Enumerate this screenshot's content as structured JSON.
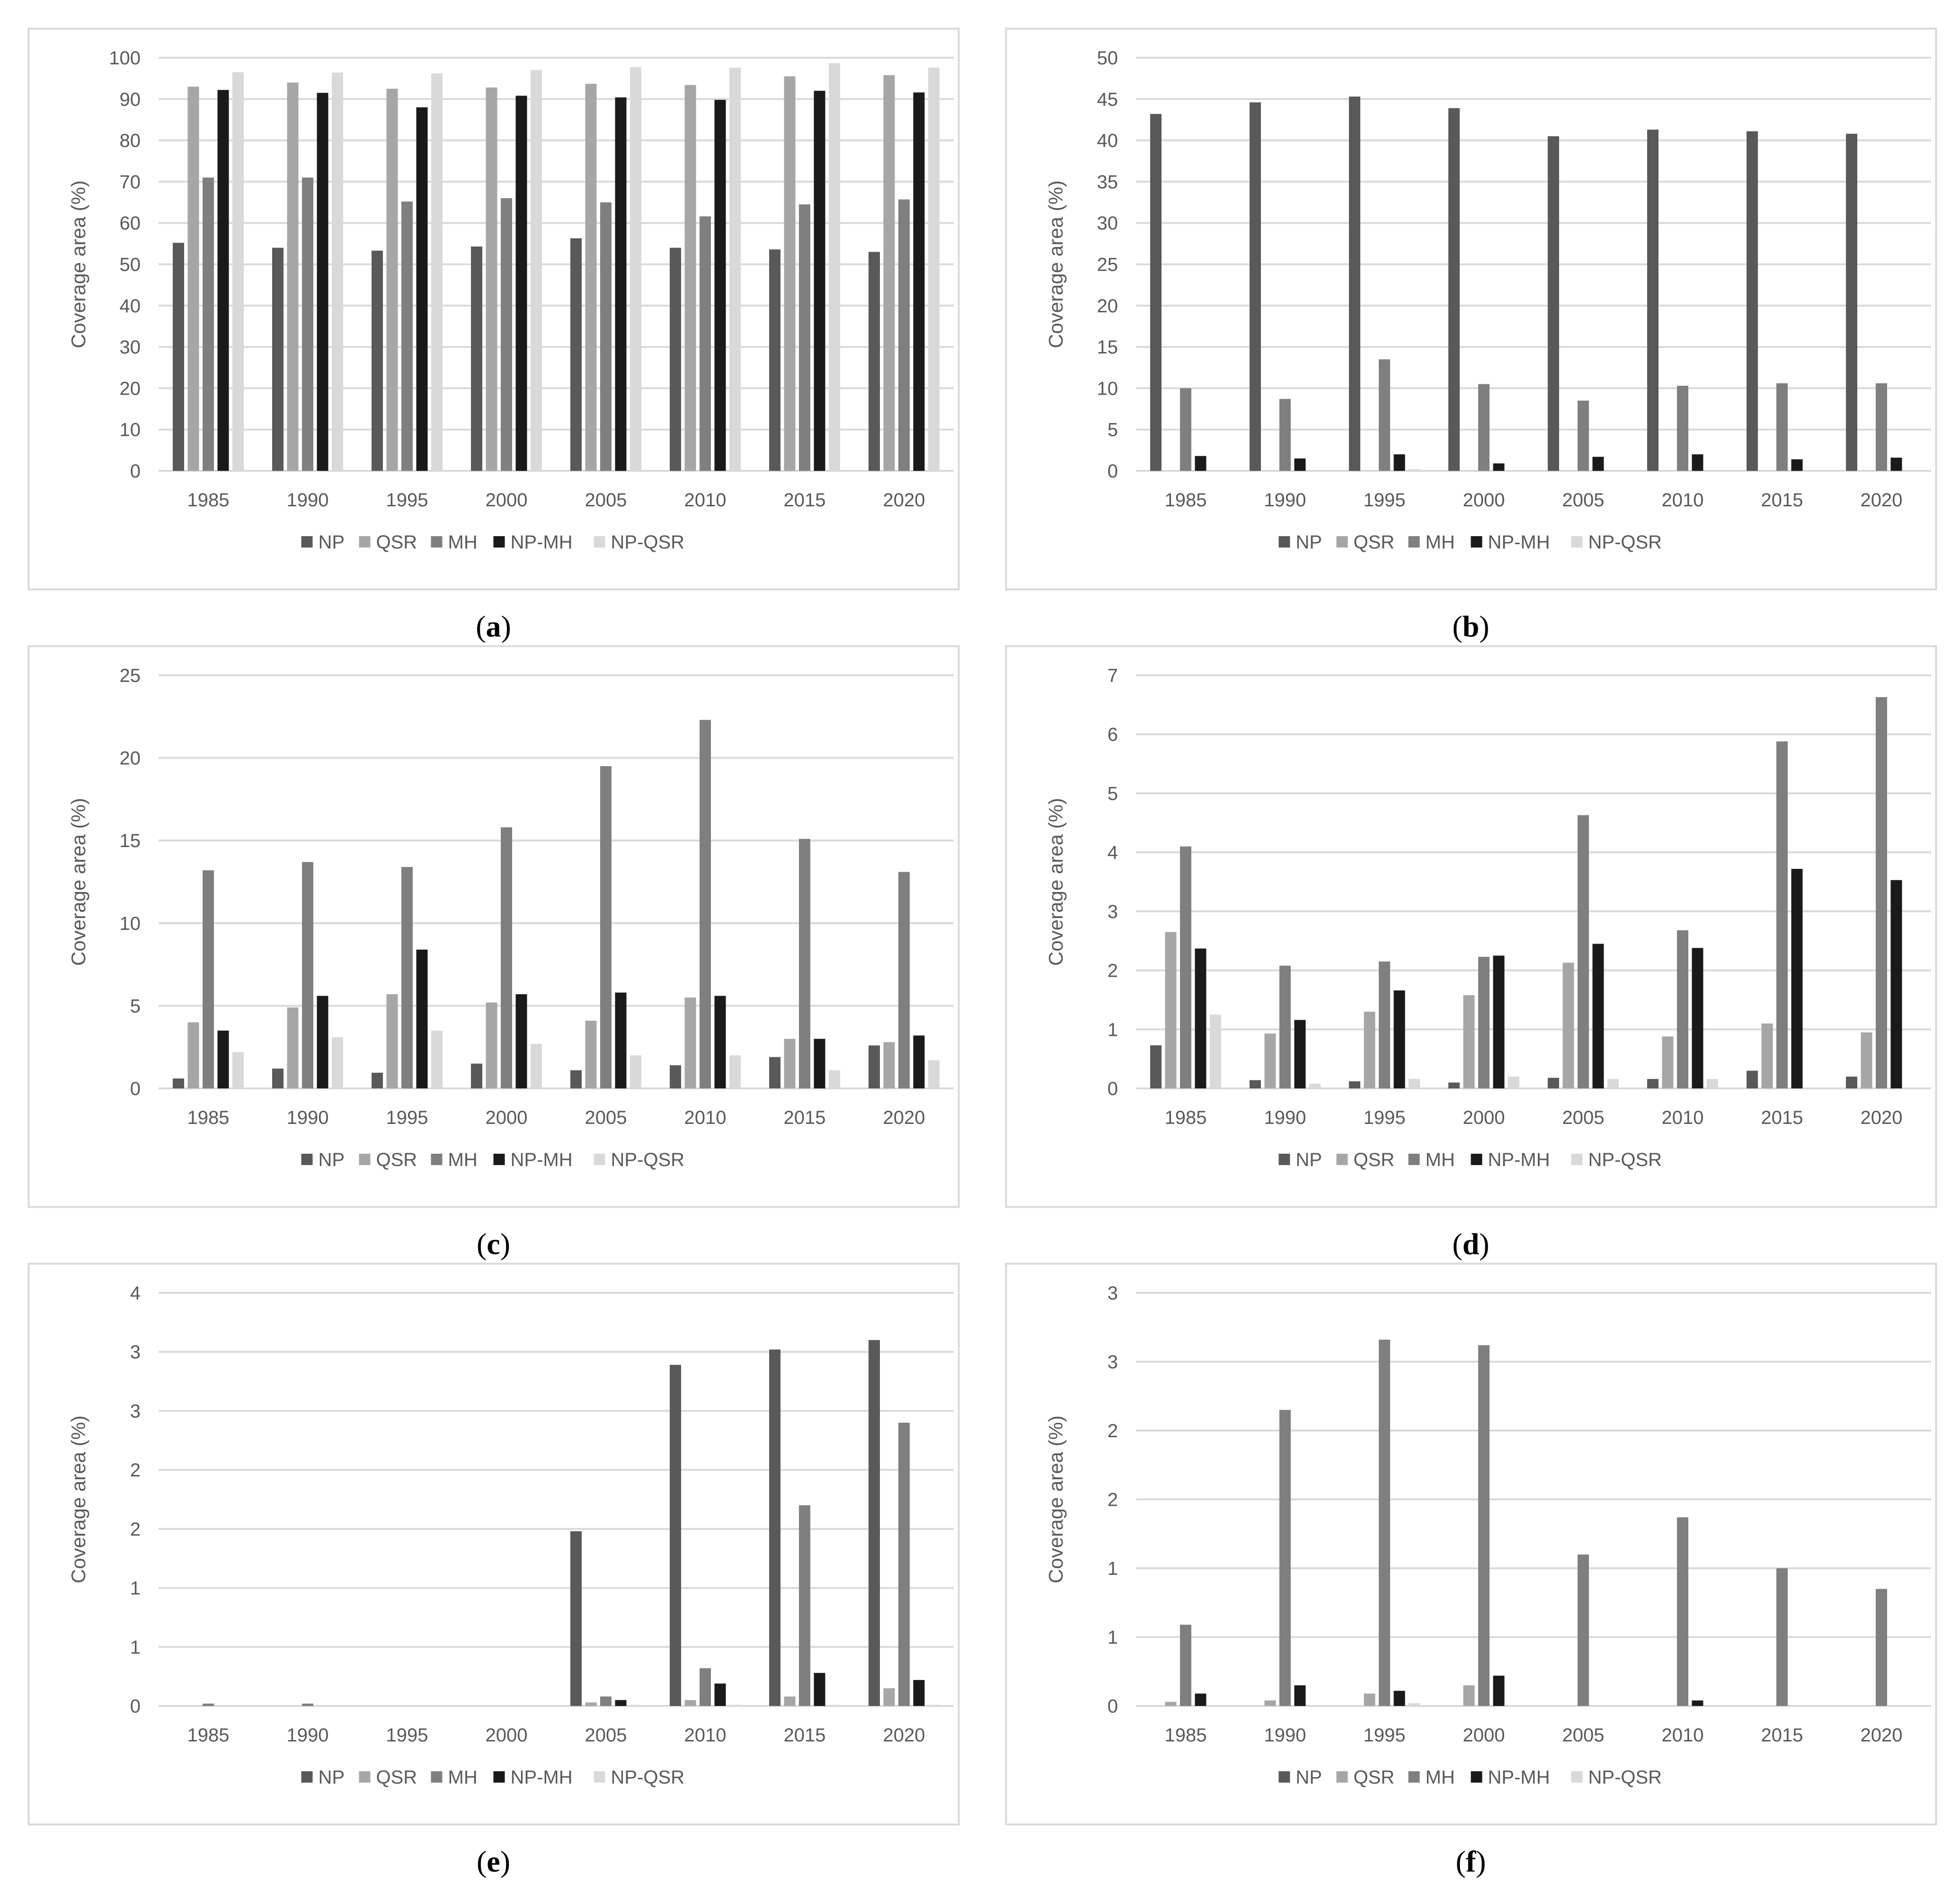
{
  "colors": {
    "NP": "#595959",
    "QSR": "#a6a6a6",
    "MH": "#7f7f7f",
    "NP-MH": "#1a1a1a",
    "NP-QSR": "#d9d9d9",
    "grid": "#d9d9d9",
    "frame": "#d9d9d9",
    "text": "#595959"
  },
  "chart_data": [
    {
      "type": "bar",
      "caption": "a",
      "ylabel": "Coverage area (%)",
      "ylim": [
        0,
        100
      ],
      "yticks": [
        "0",
        "10",
        "20",
        "30",
        "40",
        "50",
        "60",
        "70",
        "80",
        "90",
        "100"
      ],
      "categories": [
        "1985",
        "1990",
        "1995",
        "2000",
        "2005",
        "2010",
        "2015",
        "2020"
      ],
      "series": [
        {
          "name": "NP",
          "values": [
            55.2,
            54.0,
            53.3,
            54.3,
            56.3,
            54.0,
            53.6,
            53.0
          ]
        },
        {
          "name": "QSR",
          "values": [
            93.0,
            94.0,
            92.5,
            92.8,
            93.7,
            93.4,
            95.5,
            95.8
          ]
        },
        {
          "name": "MH",
          "values": [
            71.0,
            71.0,
            65.2,
            66.0,
            65.0,
            61.6,
            64.5,
            65.7
          ]
        },
        {
          "name": "NP-MH",
          "values": [
            92.2,
            91.5,
            88.0,
            90.8,
            90.4,
            89.8,
            92.0,
            91.6
          ]
        },
        {
          "name": "NP-QSR",
          "values": [
            96.5,
            96.4,
            96.2,
            97.0,
            97.7,
            97.6,
            98.7,
            97.6
          ]
        }
      ]
    },
    {
      "type": "bar",
      "caption": "b",
      "ylabel": "Coverage area (%)",
      "ylim": [
        0,
        50
      ],
      "yticks": [
        "0",
        "5",
        "10",
        "15",
        "20",
        "25",
        "30",
        "35",
        "40",
        "45",
        "50"
      ],
      "categories": [
        "1985",
        "1990",
        "1995",
        "2000",
        "2005",
        "2010",
        "2015",
        "2020"
      ],
      "series": [
        {
          "name": "NP",
          "values": [
            43.2,
            44.6,
            45.3,
            43.9,
            40.5,
            41.3,
            41.1,
            40.8
          ]
        },
        {
          "name": "QSR",
          "values": [
            0,
            0,
            0,
            0,
            0,
            0,
            0,
            0
          ]
        },
        {
          "name": "MH",
          "values": [
            10.0,
            8.7,
            13.5,
            10.5,
            8.5,
            10.3,
            10.6,
            10.6
          ]
        },
        {
          "name": "NP-MH",
          "values": [
            1.8,
            1.5,
            2.0,
            0.9,
            1.7,
            2.0,
            1.4,
            1.6
          ]
        },
        {
          "name": "NP-QSR",
          "values": [
            0,
            0,
            0.2,
            0,
            0,
            0,
            0,
            0
          ]
        }
      ]
    },
    {
      "type": "bar",
      "caption": "c",
      "ylabel": "Coverage area (%)",
      "ylim": [
        0,
        25
      ],
      "yticks": [
        "0",
        "5",
        "10",
        "15",
        "20",
        "25"
      ],
      "categories": [
        "1985",
        "1990",
        "1995",
        "2000",
        "2005",
        "2010",
        "2015",
        "2020"
      ],
      "series": [
        {
          "name": "NP",
          "values": [
            0.6,
            1.2,
            0.95,
            1.5,
            1.1,
            1.4,
            1.9,
            2.6
          ]
        },
        {
          "name": "QSR",
          "values": [
            4.0,
            4.9,
            5.7,
            5.2,
            4.1,
            5.5,
            3.0,
            2.8
          ]
        },
        {
          "name": "MH",
          "values": [
            13.2,
            13.7,
            13.4,
            15.8,
            19.5,
            22.3,
            15.1,
            13.1
          ]
        },
        {
          "name": "NP-MH",
          "values": [
            3.5,
            5.6,
            8.4,
            5.7,
            5.8,
            5.6,
            3.0,
            3.2
          ]
        },
        {
          "name": "NP-QSR",
          "values": [
            2.2,
            3.1,
            3.5,
            2.7,
            2.0,
            2.0,
            1.1,
            1.7
          ]
        }
      ]
    },
    {
      "type": "bar",
      "caption": "d",
      "ylabel": "Coverage area (%)",
      "ylim": [
        0,
        7
      ],
      "yticks": [
        "0",
        "1",
        "2",
        "3",
        "4",
        "5",
        "6",
        "7"
      ],
      "categories": [
        "1985",
        "1990",
        "1995",
        "2000",
        "2005",
        "2010",
        "2015",
        "2020"
      ],
      "series": [
        {
          "name": "NP",
          "values": [
            0.73,
            0.14,
            0.12,
            0.1,
            0.18,
            0.16,
            0.3,
            0.2
          ]
        },
        {
          "name": "QSR",
          "values": [
            2.65,
            0.93,
            1.3,
            1.58,
            2.13,
            0.88,
            1.1,
            0.95
          ]
        },
        {
          "name": "MH",
          "values": [
            4.1,
            2.08,
            2.15,
            2.23,
            4.63,
            2.68,
            5.88,
            6.63
          ]
        },
        {
          "name": "NP-MH",
          "values": [
            2.37,
            1.16,
            1.66,
            2.25,
            2.45,
            2.38,
            3.72,
            3.53
          ]
        },
        {
          "name": "NP-QSR",
          "values": [
            1.25,
            0.08,
            0.16,
            0.2,
            0.16,
            0.16,
            0,
            0
          ]
        }
      ]
    },
    {
      "type": "bar",
      "caption": "e",
      "ylabel": "Coverage area (%)",
      "ylim": [
        0,
        3.5
      ],
      "yticks": [
        "0",
        "1",
        "1",
        "2",
        "2",
        "3",
        "3",
        "4"
      ],
      "categories": [
        "1985",
        "1990",
        "1995",
        "2000",
        "2005",
        "2010",
        "2015",
        "2020"
      ],
      "series": [
        {
          "name": "NP",
          "values": [
            0,
            0,
            0,
            0,
            1.48,
            2.89,
            3.02,
            3.1
          ]
        },
        {
          "name": "QSR",
          "values": [
            0,
            0,
            0,
            0,
            0.03,
            0.05,
            0.08,
            0.15
          ]
        },
        {
          "name": "MH",
          "values": [
            0.02,
            0.02,
            0,
            0,
            0.08,
            0.32,
            1.7,
            2.4
          ]
        },
        {
          "name": "NP-MH",
          "values": [
            0,
            0,
            0,
            0,
            0.05,
            0.19,
            0.28,
            0.22
          ]
        },
        {
          "name": "NP-QSR",
          "values": [
            0,
            0,
            0,
            0,
            0.01,
            0.01,
            0.01,
            0.01
          ]
        }
      ]
    },
    {
      "type": "bar",
      "caption": "f",
      "ylabel": "Coverage area (%)",
      "ylim": [
        0,
        3
      ],
      "yticks": [
        "0",
        "1",
        "1",
        "2",
        "2",
        "3",
        "3"
      ],
      "categories": [
        "1985",
        "1990",
        "1995",
        "2000",
        "2005",
        "2010",
        "2015",
        "2020"
      ],
      "series": [
        {
          "name": "NP",
          "values": [
            0,
            0,
            0,
            0,
            0,
            0,
            0,
            0
          ]
        },
        {
          "name": "QSR",
          "values": [
            0.03,
            0.04,
            0.09,
            0.15,
            0,
            0,
            0,
            0
          ]
        },
        {
          "name": "MH",
          "values": [
            0.59,
            2.15,
            2.66,
            2.62,
            1.1,
            1.37,
            1.0,
            0.85
          ]
        },
        {
          "name": "NP-MH",
          "values": [
            0.09,
            0.15,
            0.11,
            0.22,
            0,
            0.04,
            0,
            0
          ]
        },
        {
          "name": "NP-QSR",
          "values": [
            0,
            0,
            0.02,
            0,
            0,
            0,
            0,
            0
          ]
        }
      ]
    }
  ]
}
